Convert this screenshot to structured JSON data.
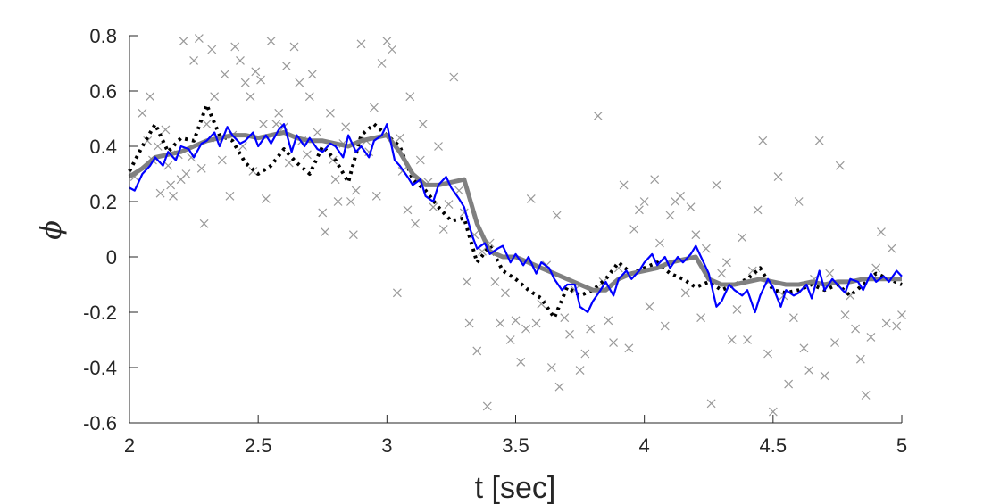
{
  "chart_data": {
    "type": "line",
    "title": "",
    "xlabel": "t [sec]",
    "ylabel": "ϕ",
    "xlim": [
      2,
      5
    ],
    "ylim": [
      -0.6,
      0.8
    ],
    "xticks": [
      2,
      2.5,
      3,
      3.5,
      4,
      4.5,
      5
    ],
    "xtick_labels": [
      "2",
      "2.5",
      "3",
      "3.5",
      "4",
      "4.5",
      "5"
    ],
    "yticks": [
      -0.6,
      -0.4,
      -0.2,
      0,
      0.2,
      0.4,
      0.6,
      0.8
    ],
    "ytick_labels": [
      "-0.6",
      "-0.4",
      "-0.2",
      "0",
      "0.2",
      "0.4",
      "0.6",
      "0.8"
    ],
    "grid": false,
    "legend": "none",
    "colors": {
      "true_series": "#000000",
      "gray_series": "#808080",
      "blue_series": "#0000ff",
      "markers": "#999999",
      "axis": "#262626"
    },
    "series": [
      {
        "style": "dotted-black",
        "x": [
          2.0,
          2.05,
          2.1,
          2.15,
          2.2,
          2.25,
          2.3,
          2.35,
          2.4,
          2.45,
          2.5,
          2.55,
          2.6,
          2.65,
          2.7,
          2.75,
          2.8,
          2.85,
          2.9,
          2.95,
          3.0,
          3.05,
          3.1,
          3.15,
          3.2,
          3.25,
          3.3,
          3.35,
          3.4,
          3.45,
          3.5,
          3.55,
          3.6,
          3.65,
          3.7,
          3.75,
          3.8,
          3.85,
          3.9,
          3.95,
          4.0,
          4.05,
          4.1,
          4.15,
          4.2,
          4.25,
          4.3,
          4.35,
          4.4,
          4.45,
          4.5,
          4.55,
          4.6,
          4.65,
          4.7,
          4.75,
          4.8,
          4.85,
          4.9,
          4.95,
          5.0
        ],
        "y": [
          0.31,
          0.4,
          0.48,
          0.38,
          0.43,
          0.42,
          0.55,
          0.44,
          0.42,
          0.34,
          0.3,
          0.33,
          0.39,
          0.34,
          0.3,
          0.4,
          0.35,
          0.27,
          0.44,
          0.48,
          0.44,
          0.4,
          0.28,
          0.24,
          0.18,
          0.13,
          0.14,
          -0.02,
          0.04,
          -0.05,
          -0.08,
          -0.12,
          -0.15,
          -0.22,
          -0.11,
          -0.14,
          -0.12,
          -0.08,
          -0.02,
          -0.06,
          -0.04,
          -0.02,
          -0.06,
          -0.08,
          -0.11,
          -0.09,
          -0.12,
          -0.1,
          -0.08,
          -0.04,
          -0.12,
          -0.13,
          -0.12,
          -0.1,
          -0.12,
          -0.1,
          -0.14,
          -0.1,
          -0.06,
          -0.08,
          -0.1
        ]
      },
      {
        "style": "thick-gray",
        "x": [
          2.0,
          2.05,
          2.1,
          2.15,
          2.2,
          2.25,
          2.3,
          2.35,
          2.4,
          2.45,
          2.5,
          2.55,
          2.6,
          2.65,
          2.7,
          2.75,
          2.8,
          2.85,
          2.9,
          2.95,
          3.0,
          3.05,
          3.1,
          3.15,
          3.2,
          3.25,
          3.3,
          3.35,
          3.4,
          3.45,
          3.5,
          3.55,
          3.6,
          3.65,
          3.7,
          3.75,
          3.8,
          3.85,
          3.9,
          3.95,
          4.0,
          4.05,
          4.1,
          4.15,
          4.2,
          4.25,
          4.3,
          4.35,
          4.4,
          4.45,
          4.5,
          4.55,
          4.6,
          4.65,
          4.7,
          4.75,
          4.8,
          4.85,
          4.9,
          4.95,
          5.0
        ],
        "y": [
          0.29,
          0.32,
          0.36,
          0.37,
          0.38,
          0.4,
          0.42,
          0.43,
          0.44,
          0.44,
          0.43,
          0.44,
          0.45,
          0.43,
          0.42,
          0.42,
          0.41,
          0.4,
          0.42,
          0.43,
          0.44,
          0.38,
          0.3,
          0.26,
          0.26,
          0.27,
          0.28,
          0.12,
          0.02,
          0.0,
          0.0,
          -0.02,
          -0.04,
          -0.06,
          -0.08,
          -0.1,
          -0.12,
          -0.12,
          -0.08,
          -0.06,
          -0.05,
          -0.04,
          -0.02,
          -0.01,
          0.0,
          -0.08,
          -0.1,
          -0.1,
          -0.09,
          -0.08,
          -0.09,
          -0.1,
          -0.1,
          -0.09,
          -0.1,
          -0.09,
          -0.09,
          -0.08,
          -0.08,
          -0.08,
          -0.08
        ]
      },
      {
        "style": "solid-blue",
        "x": [
          2.0,
          2.02,
          2.05,
          2.08,
          2.1,
          2.13,
          2.15,
          2.18,
          2.2,
          2.23,
          2.25,
          2.28,
          2.3,
          2.33,
          2.35,
          2.38,
          2.4,
          2.43,
          2.45,
          2.48,
          2.5,
          2.53,
          2.55,
          2.58,
          2.6,
          2.63,
          2.65,
          2.68,
          2.7,
          2.73,
          2.75,
          2.78,
          2.8,
          2.83,
          2.85,
          2.88,
          2.9,
          2.93,
          2.95,
          2.98,
          3.0,
          3.03,
          3.05,
          3.08,
          3.1,
          3.13,
          3.15,
          3.18,
          3.2,
          3.23,
          3.25,
          3.28,
          3.3,
          3.33,
          3.35,
          3.38,
          3.4,
          3.43,
          3.45,
          3.48,
          3.5,
          3.53,
          3.55,
          3.58,
          3.6,
          3.63,
          3.65,
          3.68,
          3.7,
          3.73,
          3.75,
          3.78,
          3.8,
          3.83,
          3.85,
          3.88,
          3.9,
          3.93,
          3.95,
          3.98,
          4.0,
          4.03,
          4.05,
          4.08,
          4.1,
          4.13,
          4.15,
          4.18,
          4.2,
          4.23,
          4.25,
          4.28,
          4.3,
          4.33,
          4.35,
          4.38,
          4.4,
          4.43,
          4.45,
          4.48,
          4.5,
          4.53,
          4.55,
          4.58,
          4.6,
          4.63,
          4.65,
          4.68,
          4.7,
          4.73,
          4.75,
          4.78,
          4.8,
          4.83,
          4.85,
          4.88,
          4.9,
          4.93,
          4.95,
          4.98,
          5.0
        ],
        "y": [
          0.25,
          0.24,
          0.3,
          0.33,
          0.36,
          0.33,
          0.38,
          0.35,
          0.4,
          0.39,
          0.36,
          0.41,
          0.42,
          0.45,
          0.4,
          0.47,
          0.44,
          0.41,
          0.42,
          0.45,
          0.4,
          0.44,
          0.41,
          0.46,
          0.48,
          0.38,
          0.44,
          0.4,
          0.43,
          0.39,
          0.38,
          0.41,
          0.4,
          0.36,
          0.44,
          0.38,
          0.4,
          0.36,
          0.42,
          0.44,
          0.48,
          0.35,
          0.33,
          0.29,
          0.26,
          0.28,
          0.22,
          0.2,
          0.26,
          0.29,
          0.25,
          0.21,
          0.18,
          0.08,
          0.03,
          0.05,
          0.01,
          0.03,
          0.04,
          -0.02,
          0.01,
          -0.03,
          0.0,
          -0.06,
          -0.02,
          -0.04,
          -0.08,
          -0.12,
          -0.1,
          -0.1,
          -0.18,
          -0.2,
          -0.16,
          -0.12,
          -0.09,
          -0.14,
          -0.08,
          -0.05,
          -0.08,
          -0.05,
          -0.02,
          0.01,
          -0.03,
          0.0,
          -0.04,
          0.0,
          -0.02,
          0.01,
          0.04,
          -0.02,
          -0.06,
          -0.18,
          -0.16,
          -0.1,
          -0.12,
          -0.14,
          -0.12,
          -0.2,
          -0.14,
          -0.08,
          -0.11,
          -0.18,
          -0.12,
          -0.14,
          -0.13,
          -0.1,
          -0.15,
          -0.05,
          -0.12,
          -0.08,
          -0.1,
          -0.13,
          -0.08,
          -0.09,
          -0.12,
          -0.06,
          -0.09,
          -0.07,
          -0.09,
          -0.05,
          -0.07
        ]
      }
    ],
    "markers": {
      "symbol": "x",
      "points": [
        [
          2.02,
          0.29
        ],
        [
          2.05,
          0.52
        ],
        [
          2.07,
          0.42
        ],
        [
          2.08,
          0.58
        ],
        [
          2.09,
          0.35
        ],
        [
          2.11,
          0.4
        ],
        [
          2.12,
          0.23
        ],
        [
          2.14,
          0.46
        ],
        [
          2.15,
          0.33
        ],
        [
          2.16,
          0.26
        ],
        [
          2.17,
          0.22
        ],
        [
          2.19,
          0.37
        ],
        [
          2.2,
          0.28
        ],
        [
          2.21,
          0.78
        ],
        [
          2.22,
          0.3
        ],
        [
          2.24,
          0.36
        ],
        [
          2.25,
          0.71
        ],
        [
          2.27,
          0.79
        ],
        [
          2.28,
          0.32
        ],
        [
          2.29,
          0.12
        ],
        [
          2.3,
          0.48
        ],
        [
          2.32,
          0.75
        ],
        [
          2.33,
          0.58
        ],
        [
          2.34,
          0.43
        ],
        [
          2.36,
          0.35
        ],
        [
          2.37,
          0.66
        ],
        [
          2.39,
          0.22
        ],
        [
          2.4,
          0.44
        ],
        [
          2.41,
          0.76
        ],
        [
          2.43,
          0.71
        ],
        [
          2.44,
          0.4
        ],
        [
          2.45,
          0.63
        ],
        [
          2.47,
          0.58
        ],
        [
          2.48,
          0.31
        ],
        [
          2.49,
          0.67
        ],
        [
          2.51,
          0.64
        ],
        [
          2.52,
          0.48
        ],
        [
          2.53,
          0.21
        ],
        [
          2.55,
          0.78
        ],
        [
          2.57,
          0.48
        ],
        [
          2.58,
          0.52
        ],
        [
          2.6,
          0.47
        ],
        [
          2.61,
          0.69
        ],
        [
          2.62,
          0.34
        ],
        [
          2.64,
          0.76
        ],
        [
          2.66,
          0.63
        ],
        [
          2.67,
          0.42
        ],
        [
          2.69,
          0.37
        ],
        [
          2.7,
          0.58
        ],
        [
          2.71,
          0.66
        ],
        [
          2.73,
          0.45
        ],
        [
          2.75,
          0.16
        ],
        [
          2.76,
          0.09
        ],
        [
          2.78,
          0.52
        ],
        [
          2.79,
          0.35
        ],
        [
          2.8,
          0.28
        ],
        [
          2.81,
          0.2
        ],
        [
          2.83,
          0.41
        ],
        [
          2.84,
          0.47
        ],
        [
          2.86,
          0.2
        ],
        [
          2.87,
          0.08
        ],
        [
          2.88,
          0.24
        ],
        [
          2.9,
          0.77
        ],
        [
          2.92,
          0.42
        ],
        [
          2.93,
          0.38
        ],
        [
          2.95,
          0.54
        ],
        [
          2.96,
          0.22
        ],
        [
          2.98,
          0.7
        ],
        [
          3.0,
          0.78
        ],
        [
          3.02,
          0.75
        ],
        [
          3.04,
          -0.13
        ],
        [
          3.05,
          0.43
        ],
        [
          3.06,
          0.31
        ],
        [
          3.08,
          0.17
        ],
        [
          3.09,
          0.58
        ],
        [
          3.11,
          0.12
        ],
        [
          3.13,
          0.35
        ],
        [
          3.14,
          0.48
        ],
        [
          3.16,
          0.27
        ],
        [
          3.18,
          0.18
        ],
        [
          3.2,
          0.4
        ],
        [
          3.22,
          0.1
        ],
        [
          3.24,
          0.19
        ],
        [
          3.26,
          0.65
        ],
        [
          3.28,
          0.24
        ],
        [
          3.3,
          0.16
        ],
        [
          3.31,
          -0.09
        ],
        [
          3.32,
          -0.24
        ],
        [
          3.34,
          0.08
        ],
        [
          3.35,
          -0.34
        ],
        [
          3.37,
          0.02
        ],
        [
          3.39,
          -0.54
        ],
        [
          3.4,
          0.05
        ],
        [
          3.42,
          -0.09
        ],
        [
          3.44,
          -0.24
        ],
        [
          3.46,
          -0.13
        ],
        [
          3.48,
          -0.3
        ],
        [
          3.5,
          -0.23
        ],
        [
          3.52,
          -0.38
        ],
        [
          3.54,
          -0.26
        ],
        [
          3.56,
          0.21
        ],
        [
          3.58,
          -0.24
        ],
        [
          3.6,
          -0.17
        ],
        [
          3.62,
          -0.03
        ],
        [
          3.64,
          -0.4
        ],
        [
          3.66,
          0.15
        ],
        [
          3.67,
          -0.47
        ],
        [
          3.69,
          -0.22
        ],
        [
          3.71,
          -0.28
        ],
        [
          3.73,
          -0.12
        ],
        [
          3.75,
          -0.41
        ],
        [
          3.77,
          -0.35
        ],
        [
          3.79,
          -0.26
        ],
        [
          3.82,
          0.51
        ],
        [
          3.84,
          -0.09
        ],
        [
          3.86,
          -0.23
        ],
        [
          3.88,
          -0.31
        ],
        [
          3.9,
          -0.04
        ],
        [
          3.92,
          0.26
        ],
        [
          3.94,
          -0.33
        ],
        [
          3.96,
          0.1
        ],
        [
          3.98,
          0.17
        ],
        [
          4.0,
          0.2
        ],
        [
          4.02,
          -0.18
        ],
        [
          4.04,
          0.28
        ],
        [
          4.06,
          0.05
        ],
        [
          4.08,
          -0.25
        ],
        [
          4.1,
          0.15
        ],
        [
          4.12,
          0.2
        ],
        [
          4.14,
          0.22
        ],
        [
          4.16,
          -0.13
        ],
        [
          4.18,
          0.18
        ],
        [
          4.2,
          0.08
        ],
        [
          4.22,
          -0.22
        ],
        [
          4.24,
          0.03
        ],
        [
          4.26,
          -0.53
        ],
        [
          4.28,
          0.26
        ],
        [
          4.3,
          -0.06
        ],
        [
          4.32,
          -0.02
        ],
        [
          4.34,
          -0.3
        ],
        [
          4.36,
          -0.19
        ],
        [
          4.38,
          0.07
        ],
        [
          4.4,
          -0.3
        ],
        [
          4.42,
          -0.05
        ],
        [
          4.44,
          0.17
        ],
        [
          4.46,
          0.42
        ],
        [
          4.48,
          -0.35
        ],
        [
          4.5,
          -0.56
        ],
        [
          4.52,
          0.29
        ],
        [
          4.54,
          -0.14
        ],
        [
          4.56,
          -0.46
        ],
        [
          4.58,
          -0.22
        ],
        [
          4.6,
          0.2
        ],
        [
          4.62,
          -0.33
        ],
        [
          4.64,
          -0.41
        ],
        [
          4.66,
          -0.08
        ],
        [
          4.68,
          0.42
        ],
        [
          4.7,
          -0.43
        ],
        [
          4.72,
          -0.06
        ],
        [
          4.74,
          -0.31
        ],
        [
          4.76,
          0.33
        ],
        [
          4.78,
          -0.21
        ],
        [
          4.8,
          -0.14
        ],
        [
          4.82,
          -0.26
        ],
        [
          4.84,
          -0.37
        ],
        [
          4.86,
          -0.5
        ],
        [
          4.88,
          -0.29
        ],
        [
          4.9,
          -0.04
        ],
        [
          4.92,
          0.09
        ],
        [
          4.94,
          -0.24
        ],
        [
          4.96,
          0.03
        ],
        [
          4.98,
          -0.25
        ],
        [
          5.0,
          -0.21
        ]
      ]
    }
  }
}
